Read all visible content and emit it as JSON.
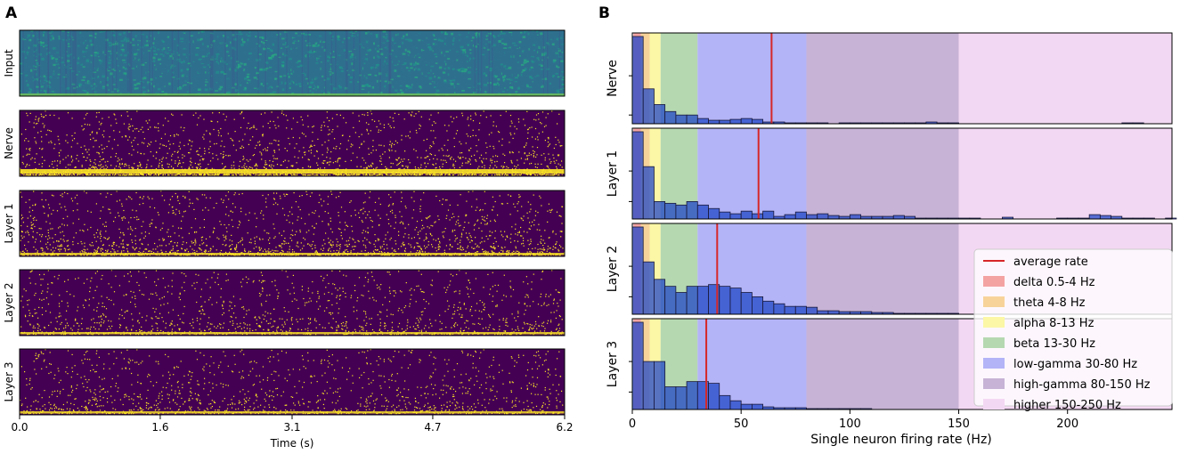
{
  "panel_labels": {
    "a": "A",
    "b": "B"
  },
  "chart_data": [
    {
      "type": "heatmap",
      "description_panel": "A",
      "rows": [
        {
          "name": "Input",
          "colormap": "viridis",
          "style": "dense"
        },
        {
          "name": "Nerve",
          "colormap": "viridis",
          "style": "spikes-bottom-band"
        },
        {
          "name": "Layer 1",
          "colormap": "viridis",
          "style": "spikes-bottom"
        },
        {
          "name": "Layer 2",
          "colormap": "viridis",
          "style": "spikes-sparse"
        },
        {
          "name": "Layer 3",
          "colormap": "viridis",
          "style": "spikes-sparse"
        }
      ],
      "xlabel": "Time (s)",
      "xlim": [
        0.0,
        6.2
      ],
      "xticks": [
        0.0,
        1.6,
        3.1,
        4.7,
        6.2
      ],
      "xtick_labels": [
        "0.0",
        "1.6",
        "3.1",
        "4.7",
        "6.2"
      ],
      "colors": {
        "low": "#440154",
        "mid": "#21918c",
        "high": "#fde725"
      }
    },
    {
      "type": "bar",
      "description_panel": "B",
      "xlabel": "Single neuron firing rate (Hz)",
      "xlim": [
        0,
        248
      ],
      "xticks": [
        0,
        50,
        100,
        150,
        200
      ],
      "xtick_labels": [
        "0",
        "50",
        "100",
        "150",
        "200"
      ],
      "bin_width": 5,
      "bands": [
        {
          "name": "delta 0.5-4 Hz",
          "from": 0.5,
          "to": 4,
          "color": "#f4a3a3"
        },
        {
          "name": "theta 4-8 Hz",
          "from": 4,
          "to": 8,
          "color": "#f7d39a"
        },
        {
          "name": "alpha 8-13 Hz",
          "from": 8,
          "to": 13,
          "color": "#fbf7a6"
        },
        {
          "name": "beta 13-30 Hz",
          "from": 13,
          "to": 30,
          "color": "#b5d8b1"
        },
        {
          "name": "low-gamma 30-80 Hz",
          "from": 30,
          "to": 80,
          "color": "#b3b3f7"
        },
        {
          "name": "high-gamma 80-150 Hz",
          "from": 80,
          "to": 150,
          "color": "#c7b3d6"
        },
        {
          "name": "higher 150-250 Hz",
          "from": 150,
          "to": 250,
          "color": "#f3d8f3"
        }
      ],
      "legend": {
        "position": "lower-right",
        "average_label": "average rate",
        "average_color": "#d62728"
      },
      "series": [
        {
          "name": "Nerve",
          "average_rate": 64,
          "ytick_values": [
            0.55,
            0.1
          ],
          "values": [
            1.0,
            0.4,
            0.22,
            0.14,
            0.1,
            0.1,
            0.06,
            0.04,
            0.04,
            0.05,
            0.06,
            0.05,
            0.02,
            0.02,
            0.01,
            0.01,
            0.01,
            0.01,
            0,
            0.005,
            0.005,
            0.005,
            0.005,
            0.01,
            0.01,
            0.005,
            0.01,
            0.02,
            0.01,
            0.005,
            0,
            0,
            0,
            0,
            0,
            0,
            0,
            0,
            0,
            0,
            0,
            0,
            0,
            0,
            0,
            0.005,
            0.005,
            0,
            0,
            0
          ]
        },
        {
          "name": "Layer 1",
          "average_rate": 58,
          "ytick_values": [
            0.55,
            0.2
          ],
          "values": [
            1.0,
            0.6,
            0.2,
            0.18,
            0.16,
            0.2,
            0.16,
            0.12,
            0.08,
            0.06,
            0.09,
            0.06,
            0.09,
            0.03,
            0.05,
            0.08,
            0.05,
            0.06,
            0.04,
            0.03,
            0.05,
            0.03,
            0.03,
            0.03,
            0.04,
            0.03,
            0.01,
            0.01,
            0.01,
            0.01,
            0.01,
            0.01,
            0,
            0,
            0.02,
            0,
            0,
            0,
            0,
            0.01,
            0.01,
            0.01,
            0.05,
            0.04,
            0.03,
            0.01,
            0.01,
            0.01,
            0,
            0.01
          ]
        },
        {
          "name": "Layer 2",
          "average_rate": 39,
          "ytick_values": [
            0.55,
            0.2
          ],
          "values": [
            1.0,
            0.6,
            0.4,
            0.32,
            0.25,
            0.32,
            0.32,
            0.34,
            0.32,
            0.3,
            0.25,
            0.2,
            0.15,
            0.12,
            0.09,
            0.09,
            0.08,
            0.04,
            0.04,
            0.03,
            0.03,
            0.03,
            0.02,
            0.02,
            0.01,
            0.01,
            0.01,
            0.01,
            0.01,
            0.01,
            0,
            0,
            0,
            0,
            0,
            0,
            0,
            0,
            0,
            0,
            0,
            0,
            0,
            0,
            0,
            0,
            0,
            0,
            0,
            0
          ]
        },
        {
          "name": "Layer 3",
          "average_rate": 34,
          "ytick_values": [
            0.55,
            0.2
          ],
          "values": [
            1.0,
            0.55,
            0.55,
            0.26,
            0.26,
            0.32,
            0.32,
            0.3,
            0.16,
            0.1,
            0.06,
            0.06,
            0.03,
            0.02,
            0.02,
            0.02,
            0.01,
            0.01,
            0.01,
            0.005,
            0.005,
            0.005,
            0,
            0,
            0,
            0,
            0,
            0,
            0,
            0,
            0,
            0,
            0,
            0,
            0,
            0,
            0,
            0,
            0,
            0,
            0,
            0,
            0,
            0,
            0,
            0,
            0,
            0,
            0,
            0
          ]
        }
      ]
    }
  ]
}
